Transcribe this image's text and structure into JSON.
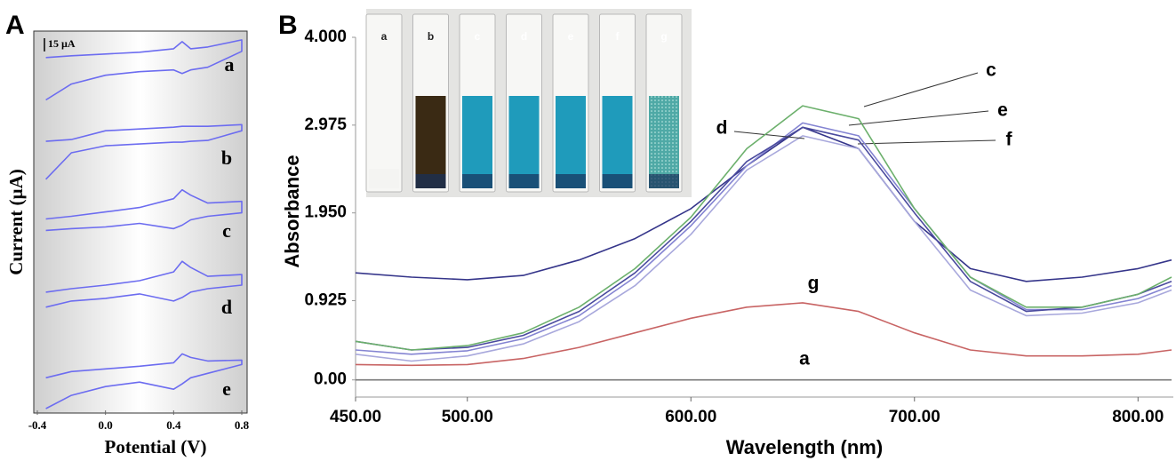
{
  "chart_data": [
    {
      "type": "line",
      "panel_label": "A",
      "x_label": "Potential (V)",
      "y_label": "Current (µA)",
      "scale_bar": {
        "value": 15,
        "label": "15 µA"
      },
      "x": [
        -0.35,
        -0.2,
        0,
        0.2,
        0.4,
        0.45,
        0.5,
        0.6,
        0.8,
        0.8,
        0.6,
        0.5,
        0.45,
        0.4,
        0.2,
        0,
        -0.2,
        -0.35
      ],
      "xlim": [
        -0.4,
        0.8
      ],
      "xticks": [
        -0.4,
        {
          "value": 0,
          "label": "0.0"
        },
        0.4,
        0.8
      ],
      "ylim": [
        0,
        430
      ],
      "series": [
        {
          "name": "a",
          "color": "#6c6cf0",
          "values": [
            352,
            370,
            380,
            384,
            386,
            382,
            386,
            389,
            407,
            420,
            412,
            410,
            418,
            410,
            406,
            404,
            402,
            400
          ]
        },
        {
          "name": "b",
          "color": "#6c6cf0",
          "values": [
            262,
            292,
            300,
            302,
            304,
            304,
            305,
            306,
            317,
            324,
            322,
            322,
            322,
            321,
            319,
            317,
            307,
            305
          ]
        },
        {
          "name": "c",
          "color": "#6c6cf0",
          "values": [
            204,
            206,
            208,
            212,
            206,
            210,
            216,
            220,
            224,
            237,
            235,
            244,
            250,
            240,
            230,
            225,
            220,
            217
          ]
        },
        {
          "name": "d",
          "color": "#6c6cf0",
          "values": [
            117,
            124,
            127,
            132,
            124,
            128,
            134,
            138,
            142,
            154,
            152,
            162,
            169,
            157,
            147,
            142,
            138,
            134
          ]
        },
        {
          "name": "e",
          "color": "#6c6cf0",
          "values": [
            2,
            17,
            27,
            32,
            24,
            30,
            37,
            42,
            52,
            57,
            56,
            60,
            64,
            54,
            50,
            47,
            44,
            37
          ]
        }
      ]
    },
    {
      "type": "line",
      "panel_label": "B",
      "x_label": "Wavelength (nm)",
      "y_label": "Absorbance",
      "x": [
        450,
        475,
        500,
        525,
        550,
        575,
        600,
        625,
        650,
        675,
        700,
        725,
        750,
        775,
        800,
        815
      ],
      "xlim": [
        450,
        815
      ],
      "xticks": [
        {
          "value": 450,
          "label": "450.00"
        },
        {
          "value": 500,
          "label": "500.00"
        },
        {
          "value": 600,
          "label": "600.00"
        },
        {
          "value": 700,
          "label": "700.00"
        },
        {
          "value": 800,
          "label": "800.00"
        }
      ],
      "ylim": [
        -0.2,
        4.0
      ],
      "yticks": [
        {
          "value": 0,
          "label": "0.00"
        },
        0.925,
        {
          "value": 1.95,
          "label": "1.950"
        },
        2.975,
        {
          "value": 4,
          "label": "4.000"
        }
      ],
      "inset_labels": [
        "a",
        "b",
        "c",
        "d",
        "e",
        "f",
        "g"
      ],
      "series": [
        {
          "name": "a",
          "color": "#7a7a7a",
          "values": [
            0,
            0,
            0,
            0,
            0,
            0,
            0,
            0,
            0,
            0,
            0,
            0,
            0,
            0,
            0,
            0
          ]
        },
        {
          "name": "g",
          "color": "#c86464",
          "values": [
            0.18,
            0.17,
            0.18,
            0.25,
            0.38,
            0.55,
            0.72,
            0.85,
            0.9,
            0.8,
            0.55,
            0.35,
            0.28,
            0.28,
            0.3,
            0.35
          ]
        },
        {
          "name": null,
          "color": "#35358a",
          "values": [
            1.25,
            1.2,
            1.17,
            1.22,
            1.4,
            1.65,
            2.0,
            2.5,
            2.95,
            2.7,
            1.85,
            1.3,
            1.15,
            1.2,
            1.3,
            1.4
          ]
        },
        {
          "name": "f",
          "color": "#a8a8dc",
          "values": [
            0.3,
            0.22,
            0.28,
            0.42,
            0.68,
            1.1,
            1.7,
            2.45,
            2.85,
            2.7,
            1.85,
            1.05,
            0.75,
            0.78,
            0.9,
            1.05
          ]
        },
        {
          "name": "e",
          "color": "#8484d2",
          "values": [
            0.35,
            0.3,
            0.34,
            0.48,
            0.75,
            1.2,
            1.8,
            2.5,
            3.0,
            2.85,
            2.0,
            1.2,
            0.82,
            0.82,
            0.95,
            1.1
          ]
        },
        {
          "name": "d",
          "color": "#4a4a9e",
          "values": [
            0.45,
            0.35,
            0.38,
            0.52,
            0.8,
            1.25,
            1.85,
            2.55,
            2.95,
            2.8,
            1.95,
            1.15,
            0.8,
            0.85,
            1.0,
            1.15
          ]
        },
        {
          "name": "c",
          "color": "#6cb06c",
          "values": [
            0.45,
            0.35,
            0.4,
            0.55,
            0.85,
            1.3,
            1.9,
            2.7,
            3.2,
            3.05,
            2.0,
            1.2,
            0.85,
            0.85,
            1.0,
            1.2
          ]
        }
      ]
    }
  ]
}
